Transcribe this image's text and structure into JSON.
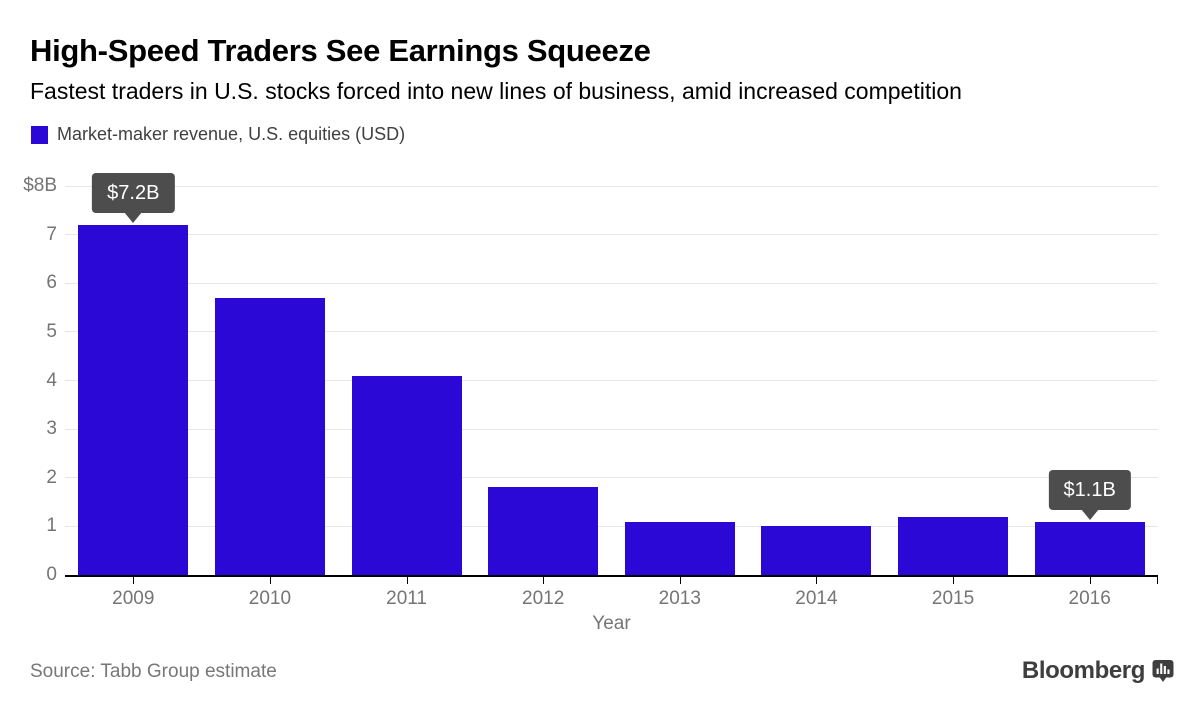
{
  "header": {
    "title": "High-Speed Traders See Earnings Squeeze",
    "subtitle": "Fastest traders in U.S. stocks forced into new lines of business, amid increased competition"
  },
  "legend": {
    "label": "Market-maker revenue, U.S. equities (USD)"
  },
  "chart_data": {
    "type": "bar",
    "title": "Market-maker revenue, U.S. equities (USD)",
    "categories": [
      "2009",
      "2010",
      "2011",
      "2012",
      "2013",
      "2014",
      "2015",
      "2016"
    ],
    "values": [
      7.2,
      5.7,
      4.1,
      1.8,
      1.1,
      1.0,
      1.2,
      1.1
    ],
    "xlabel": "Year",
    "ylabel": "",
    "ylim": [
      0,
      8
    ],
    "yticks": [
      0,
      1,
      2,
      3,
      4,
      5,
      6,
      7,
      8
    ],
    "ytick_labels": [
      "0",
      "1",
      "2",
      "3",
      "4",
      "5",
      "6",
      "7",
      "$8B"
    ],
    "grid": true,
    "legend_position": "top-left",
    "annotations": [
      {
        "index": 0,
        "category": "2009",
        "label": "$7.2B"
      },
      {
        "index": 7,
        "category": "2016",
        "label": "$1.1B"
      }
    ]
  },
  "footer": {
    "source": "Source: Tabb Group estimate",
    "logo_text": "Bloomberg",
    "logo_icon": "bloomberg-bubble-chart-icon"
  },
  "colors": {
    "bar": "#2b08d6",
    "grid_line": "#e7e7e7",
    "axis_line": "#000000",
    "axis_text": "#757575",
    "tooltip_bg": "#4d4d4d",
    "tooltip_text": "#ffffff",
    "source_text": "#777777",
    "logo": "#3e3e3e"
  }
}
